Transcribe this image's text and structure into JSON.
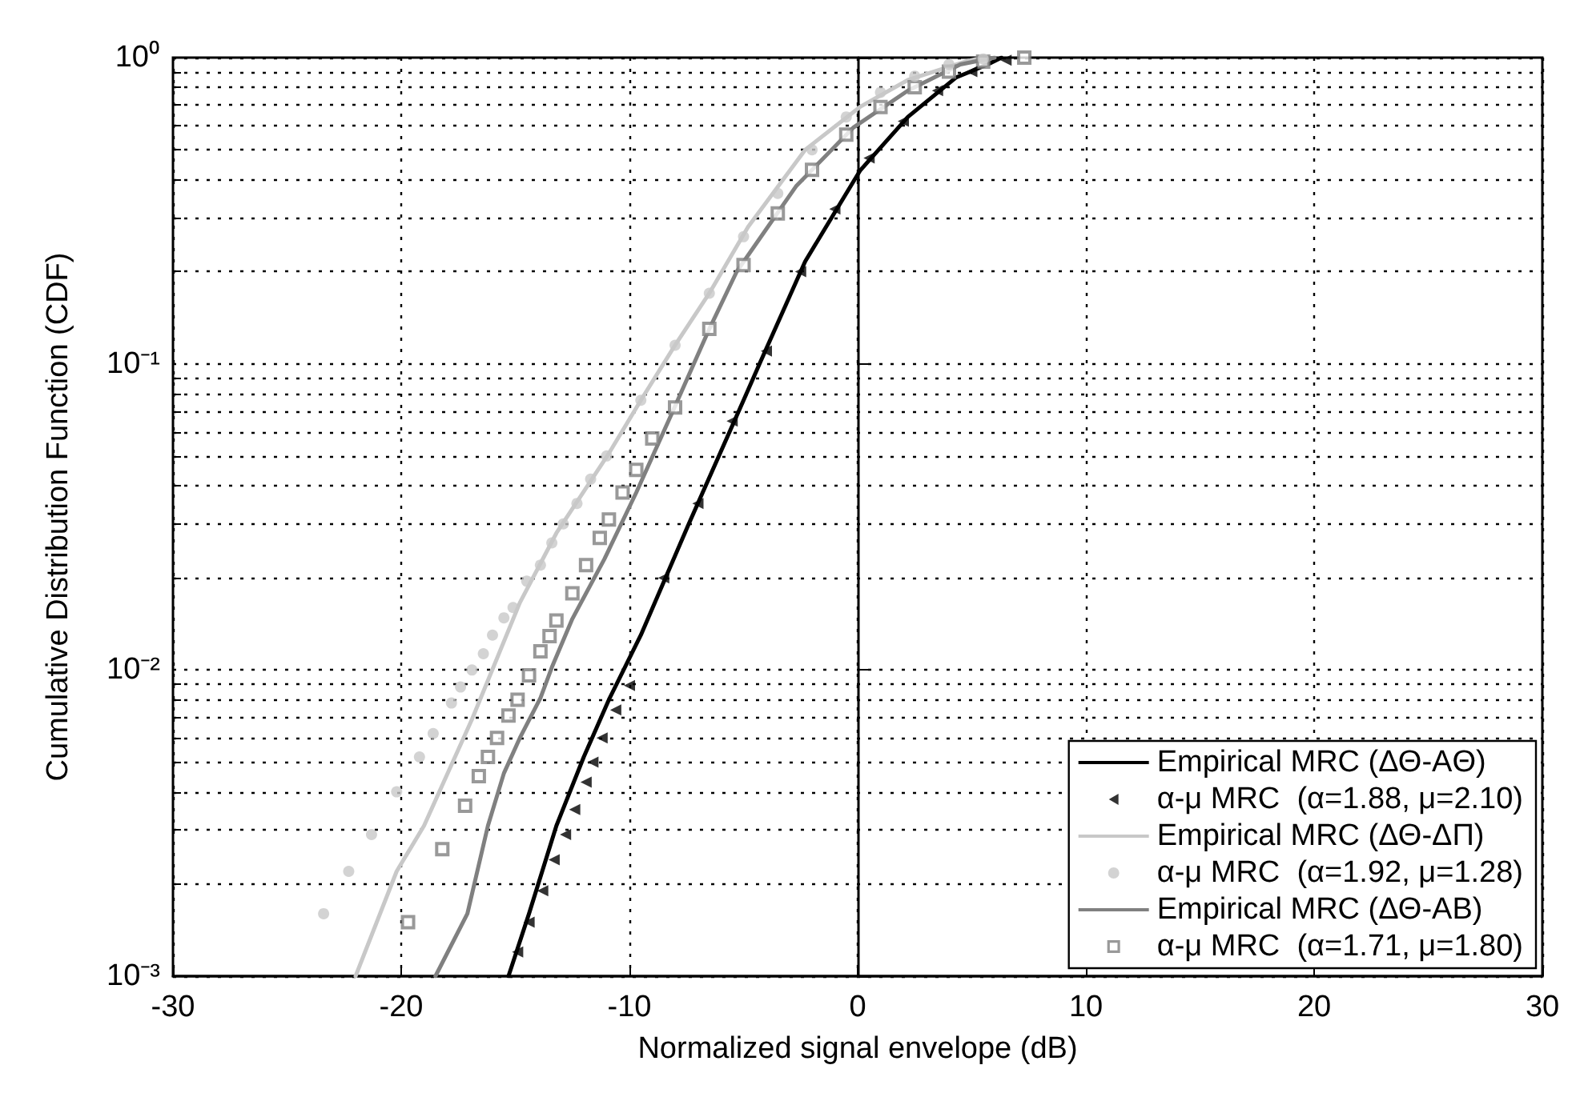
{
  "chart_data": {
    "type": "line",
    "xlabel": "Normalized signal envelope (dB)",
    "ylabel": "Cumulative Distribution Function (CDF)",
    "log": "y",
    "grid": true,
    "legend": "bottom right",
    "xlim": [
      -30,
      30
    ],
    "xticks": [
      -30,
      -20,
      -10,
      0,
      10,
      20,
      30
    ],
    "ylim": [
      0.001,
      1
    ],
    "yticks": [
      {
        "value": 0.001,
        "label": "10⁻³"
      },
      {
        "value": 0.01,
        "label": "10⁻²"
      },
      {
        "value": 0.1,
        "label": "10⁻¹"
      },
      {
        "value": 1,
        "label": "10⁰"
      }
    ],
    "series": [
      {
        "name": "Empirical MRC (ΔΘ-AΘ)",
        "type": "line",
        "marker": "none",
        "line_style": "solid",
        "color": "#000000",
        "x": [
          -15.3,
          -14.4,
          -13.2,
          -12.0,
          -10.9,
          -9.5,
          -7.4,
          -5.0,
          -4.3,
          -2.3,
          0.1,
          2.2,
          4.3,
          5.7,
          6.3
        ],
        "values": [
          0.001,
          0.0016,
          0.0031,
          0.0052,
          0.008,
          0.013,
          0.03,
          0.076,
          0.1,
          0.216,
          0.427,
          0.64,
          0.86,
          0.95,
          1.0
        ]
      },
      {
        "name": "α-μ MRC  (α=1.88, μ=2.10)",
        "type": "scatter",
        "marker": "triangle",
        "color": "#000000",
        "x": [
          -14.9,
          -14.4,
          -13.8,
          -13.3,
          -12.8,
          -12.4,
          -11.9,
          -11.6,
          -11.2,
          -10.6,
          -10.0,
          -8.5,
          -7.0,
          -5.5,
          -4.0,
          -2.5,
          -1.0,
          0.5,
          2.0,
          3.5,
          5.0,
          6.5
        ],
        "values": [
          0.0012,
          0.0015,
          0.0019,
          0.0024,
          0.0029,
          0.0035,
          0.0043,
          0.005,
          0.006,
          0.0074,
          0.0089,
          0.02,
          0.035,
          0.065,
          0.11,
          0.2,
          0.32,
          0.47,
          0.62,
          0.78,
          0.9,
          0.98
        ]
      },
      {
        "name": "Empirical MRC (ΔΘ-ΔΠ)",
        "type": "line",
        "marker": "none",
        "line_style": "solid",
        "color": "#c8c8c8",
        "x": [
          -22.0,
          -20.2,
          -19.0,
          -16.9,
          -14.8,
          -13.2,
          -10.9,
          -9.5,
          -8.0,
          -6.5,
          -4.8,
          -2.3,
          0.1,
          2.2,
          4.7,
          5.5
        ],
        "values": [
          0.001,
          0.0022,
          0.0031,
          0.0069,
          0.0166,
          0.028,
          0.051,
          0.076,
          0.115,
          0.17,
          0.28,
          0.5,
          0.69,
          0.845,
          0.97,
          1.0
        ]
      },
      {
        "name": "α-μ MRC  (α=1.92, μ=1.28)",
        "type": "scatter",
        "marker": "circle",
        "color": "#c8c8c8",
        "x": [
          -23.4,
          -22.3,
          -21.3,
          -20.2,
          -19.2,
          -18.6,
          -17.8,
          -17.4,
          -16.9,
          -16.4,
          -16.0,
          -15.5,
          -15.1,
          -14.5,
          -13.9,
          -13.4,
          -12.9,
          -12.3,
          -11.7,
          -11.0,
          -9.5,
          -8.0,
          -6.5,
          -5.0,
          -3.5,
          -2.0,
          -0.5,
          1.0,
          2.5,
          4.0,
          5.5
        ],
        "values": [
          0.0016,
          0.0022,
          0.0029,
          0.004,
          0.0052,
          0.0062,
          0.0078,
          0.0088,
          0.01,
          0.0113,
          0.013,
          0.0148,
          0.016,
          0.0195,
          0.022,
          0.026,
          0.03,
          0.035,
          0.042,
          0.05,
          0.076,
          0.115,
          0.17,
          0.26,
          0.36,
          0.5,
          0.64,
          0.77,
          0.87,
          0.95,
          0.99
        ]
      },
      {
        "name": "Empirical MRC (ΔΘ-AB)",
        "type": "line",
        "marker": "none",
        "line_style": "solid",
        "color": "#808080",
        "x": [
          -18.5,
          -17.1,
          -16.2,
          -15.5,
          -14.8,
          -13.9,
          -13.4,
          -12.5,
          -11.1,
          -9.7,
          -8.1,
          -6.5,
          -5.3,
          -2.7,
          -0.2,
          2.2,
          4.5,
          6.0
        ],
        "values": [
          0.001,
          0.0016,
          0.0031,
          0.0046,
          0.006,
          0.0081,
          0.0102,
          0.0147,
          0.023,
          0.038,
          0.07,
          0.13,
          0.2,
          0.38,
          0.59,
          0.78,
          0.95,
          1.0
        ]
      },
      {
        "name": "α-μ MRC  (α=1.71, μ=1.80)",
        "type": "scatter",
        "marker": "square",
        "color": "#808080",
        "x": [
          -19.7,
          -18.2,
          -17.2,
          -16.6,
          -16.2,
          -15.8,
          -15.3,
          -14.9,
          -14.4,
          -13.9,
          -13.5,
          -13.2,
          -12.5,
          -11.9,
          -11.3,
          -10.9,
          -10.3,
          -9.7,
          -9.0,
          -8.0,
          -6.5,
          -5.0,
          -3.5,
          -2.0,
          -0.5,
          1.0,
          2.5,
          4.0,
          5.5,
          7.3
        ],
        "values": [
          0.0015,
          0.0026,
          0.0036,
          0.0045,
          0.0052,
          0.006,
          0.0071,
          0.008,
          0.0096,
          0.0115,
          0.0129,
          0.0145,
          0.0178,
          0.022,
          0.027,
          0.031,
          0.038,
          0.045,
          0.057,
          0.072,
          0.13,
          0.21,
          0.31,
          0.43,
          0.56,
          0.69,
          0.8,
          0.9,
          0.97,
          1.0
        ]
      }
    ]
  }
}
